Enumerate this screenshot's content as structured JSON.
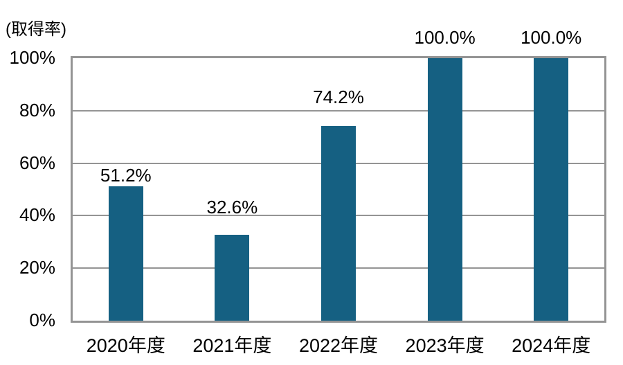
{
  "chart_data": {
    "type": "bar",
    "title": "",
    "unit_label": "(取得率)",
    "xlabel": "",
    "ylabel": "(取得率)",
    "categories": [
      "2020年度",
      "2021年度",
      "2022年度",
      "2023年度",
      "2024年度"
    ],
    "values": [
      51.2,
      32.6,
      74.2,
      100.0,
      100.0
    ],
    "data_labels": [
      "51.2%",
      "32.6%",
      "74.2%",
      "100.0%",
      "100.0%"
    ],
    "ylim": [
      0,
      100
    ],
    "yticks": [
      0,
      20,
      40,
      60,
      80,
      100
    ],
    "ytick_labels": [
      "0%",
      "20%",
      "40%",
      "60%",
      "80%",
      "100%"
    ],
    "grid": true,
    "legend": false,
    "colors": {
      "bar": "#156082",
      "gridline": "#949494",
      "text": "#000000",
      "background": "#ffffff"
    }
  }
}
